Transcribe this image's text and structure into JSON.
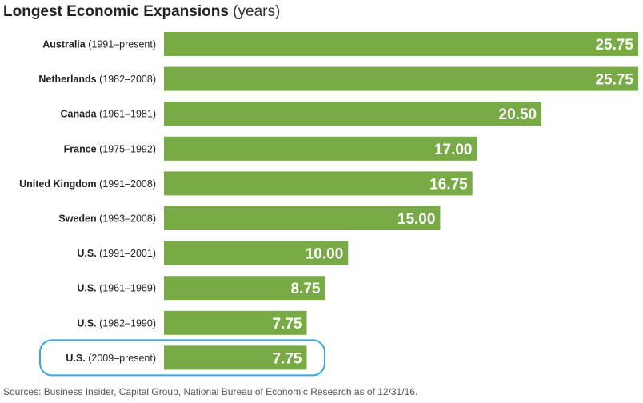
{
  "colors": {
    "bar": "#78ab45",
    "highlight": "#36a9e1"
  },
  "chart_data": {
    "type": "bar",
    "orientation": "horizontal",
    "title": "Longest Economic Expansions",
    "title_unit": "(years)",
    "xlim": [
      0,
      25.75
    ],
    "grid": false,
    "legend": "none",
    "categories": [
      {
        "name": "Australia",
        "period": "(1991–present)"
      },
      {
        "name": "Netherlands",
        "period": "(1982–2008)"
      },
      {
        "name": "Canada",
        "period": "(1961–1981)"
      },
      {
        "name": "France",
        "period": "(1975–1992)"
      },
      {
        "name": "United Kingdom",
        "period": "(1991–2008)"
      },
      {
        "name": "Sweden",
        "period": "(1993–2008)"
      },
      {
        "name": "U.S.",
        "period": "(1991–2001)"
      },
      {
        "name": "U.S.",
        "period": "(1961–1969)"
      },
      {
        "name": "U.S.",
        "period": "(1982–1990)"
      },
      {
        "name": "U.S.",
        "period": "(2009–present)"
      }
    ],
    "values": [
      25.75,
      25.75,
      20.5,
      17.0,
      16.75,
      15.0,
      10.0,
      8.75,
      7.75,
      7.75
    ],
    "value_labels": [
      "25.75",
      "25.75",
      "20.50",
      "17.00",
      "16.75",
      "15.00",
      "10.00",
      "8.75",
      "7.75",
      "7.75"
    ],
    "highlighted": [
      false,
      false,
      false,
      false,
      false,
      false,
      false,
      false,
      false,
      true
    ],
    "source": "Sources: Business Insider, Capital Group, National Bureau of Economic Research as of 12/31/16."
  }
}
